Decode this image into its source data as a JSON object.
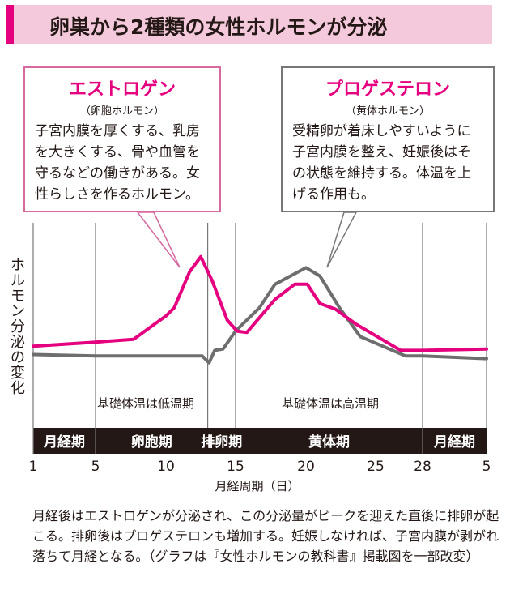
{
  "title": "卵巣から2種類の女性ホルモンが分泌",
  "estrogen": {
    "name": "エストロゲン",
    "sub": "（卵胞ホルモン）",
    "desc": "子宮内膜を厚くする、乳房を大きくする、骨や血管を守るなどの働きがある。女性らしさを作るホルモン。"
  },
  "progesterone": {
    "name": "プロゲステロン",
    "sub": "（黄体ホルモン）",
    "desc": "受精卵が着床しやすいように子宮内膜を整え、妊娠後はその状態を維持する。体温を上げる作用も。"
  },
  "ylabel": "ホルモン分泌の変化",
  "temp_low": "基礎体温は低温期",
  "temp_high": "基礎体温は高温期",
  "phases": [
    "月経期",
    "卵胞期",
    "排卵期",
    "黄体期",
    "月経期"
  ],
  "xlabel": "月経周期（日）",
  "ticks": [
    "1",
    "5",
    "10",
    "15",
    "20",
    "25",
    "28",
    "5"
  ],
  "note": "月経後はエストロゲンが分泌され、この分泌量がピークを迎えた直後に排卵が起こる。排卵後はプロゲステロンも増加する。妊娠しなければ、子宮内膜が剥がれ落ちて月経となる。（グラフは『女性ホルモンの教科書』掲載図を一部改変）",
  "colors": {
    "estrogen": "#e4007f",
    "progesterone": "#6e6e6e",
    "accent": "#e4007f",
    "title_bg": "#f5c9dc"
  },
  "chart_data": {
    "type": "line",
    "x_unit": "day of cycle (next cycle days 1-5 after 28)",
    "tick_days": [
      1,
      5,
      10,
      15,
      20,
      25,
      28,
      33
    ],
    "phase_bounds_days": [
      1,
      5,
      13,
      15,
      28,
      33
    ],
    "series": [
      {
        "name": "エストロゲン",
        "color": "#e4007f",
        "x": [
          1,
          5,
          7.7,
          10,
          10.6,
          11.7,
          12.5,
          13.3,
          14.4,
          15.1,
          15.8,
          17.8,
          19.2,
          20.1,
          21,
          22.1,
          23.6,
          26.6,
          28,
          33
        ],
        "y": [
          31,
          34,
          36,
          53,
          59,
          85,
          96,
          79,
          50,
          42,
          41,
          65,
          76,
          76,
          62,
          58,
          47,
          28,
          28,
          29
        ]
      },
      {
        "name": "プロゲステロン",
        "color": "#6e6e6e",
        "x": [
          1,
          5,
          12.6,
          13.1,
          13.5,
          14.1,
          15,
          16.7,
          17.8,
          20,
          21,
          22.4,
          23.9,
          26.9,
          28,
          33
        ],
        "y": [
          25,
          24,
          24,
          19,
          28,
          29,
          42,
          59,
          76,
          88,
          82,
          59,
          38,
          24,
          24,
          22
        ]
      }
    ]
  }
}
